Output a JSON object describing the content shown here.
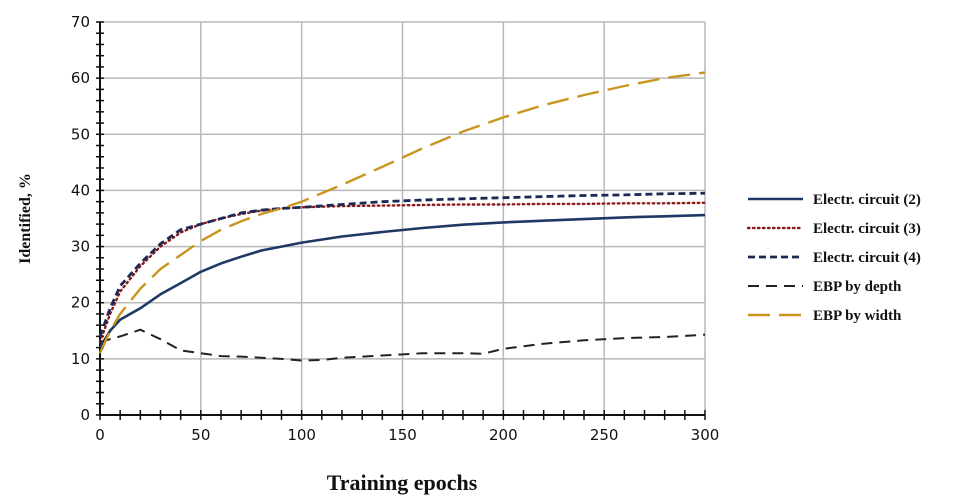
{
  "chart_data": {
    "type": "line",
    "xlabel": "Training epochs",
    "ylabel": "Identified, %",
    "xlim": [
      0,
      300
    ],
    "ylim": [
      0,
      70
    ],
    "x_ticks": [
      0,
      50,
      100,
      150,
      200,
      250,
      300
    ],
    "y_ticks": [
      0,
      10,
      20,
      30,
      40,
      50,
      60,
      70
    ],
    "grid": true,
    "legend_position": "right",
    "series": [
      {
        "name": "Electr. circuit (2)",
        "color": "#1f3864",
        "dash": "solid",
        "x": [
          0,
          5,
          10,
          20,
          30,
          40,
          50,
          60,
          70,
          80,
          90,
          100,
          120,
          140,
          160,
          180,
          200,
          220,
          240,
          260,
          280,
          300
        ],
        "y": [
          12,
          15,
          17,
          19,
          21.5,
          23.5,
          25.5,
          27,
          28.2,
          29.3,
          30,
          30.7,
          31.8,
          32.6,
          33.3,
          33.9,
          34.3,
          34.6,
          34.9,
          35.2,
          35.4,
          35.6
        ]
      },
      {
        "name": "Electr. circuit (3)",
        "color": "#8b1a1a",
        "dash": "dotted",
        "x": [
          0,
          5,
          10,
          20,
          30,
          40,
          50,
          60,
          70,
          80,
          90,
          100,
          120,
          140,
          160,
          180,
          200,
          220,
          240,
          260,
          280,
          300
        ],
        "y": [
          13,
          18,
          22,
          26.5,
          30,
          32.5,
          34,
          35,
          35.8,
          36.4,
          36.8,
          37,
          37.2,
          37.3,
          37.4,
          37.5,
          37.5,
          37.6,
          37.6,
          37.7,
          37.7,
          37.8
        ]
      },
      {
        "name": "Electr. circuit (4)",
        "color": "#1b2a55",
        "dash": "short-dash",
        "x": [
          0,
          5,
          10,
          20,
          30,
          40,
          50,
          60,
          70,
          80,
          90,
          100,
          120,
          140,
          160,
          180,
          200,
          220,
          240,
          260,
          280,
          300
        ],
        "y": [
          14,
          19,
          23,
          27,
          30.5,
          33,
          34,
          35,
          36,
          36.5,
          36.8,
          37,
          37.5,
          38,
          38.3,
          38.5,
          38.7,
          38.9,
          39.1,
          39.2,
          39.4,
          39.5
        ]
      },
      {
        "name": "EBP by depth",
        "color": "#222222",
        "dash": "dash",
        "x": [
          0,
          10,
          20,
          30,
          40,
          50,
          60,
          70,
          80,
          90,
          100,
          110,
          120,
          140,
          160,
          180,
          190,
          200,
          220,
          240,
          260,
          280,
          300
        ],
        "y": [
          13,
          14,
          15.2,
          13.5,
          11.5,
          11,
          10.5,
          10.4,
          10.2,
          10,
          9.7,
          9.8,
          10.2,
          10.6,
          11,
          11,
          10.9,
          11.8,
          12.7,
          13.3,
          13.7,
          13.9,
          14.3
        ]
      },
      {
        "name": "EBP by width",
        "color": "#c8961e",
        "dash": "long-dash",
        "x": [
          0,
          5,
          10,
          20,
          30,
          40,
          50,
          60,
          70,
          80,
          90,
          100,
          120,
          140,
          160,
          180,
          200,
          220,
          240,
          260,
          280,
          300
        ],
        "y": [
          11,
          15,
          18,
          22.5,
          26,
          28.5,
          31,
          33,
          34.5,
          35.8,
          36.8,
          38,
          41,
          44.2,
          47.5,
          50.5,
          53,
          55.2,
          57,
          58.6,
          60,
          61
        ]
      }
    ]
  }
}
